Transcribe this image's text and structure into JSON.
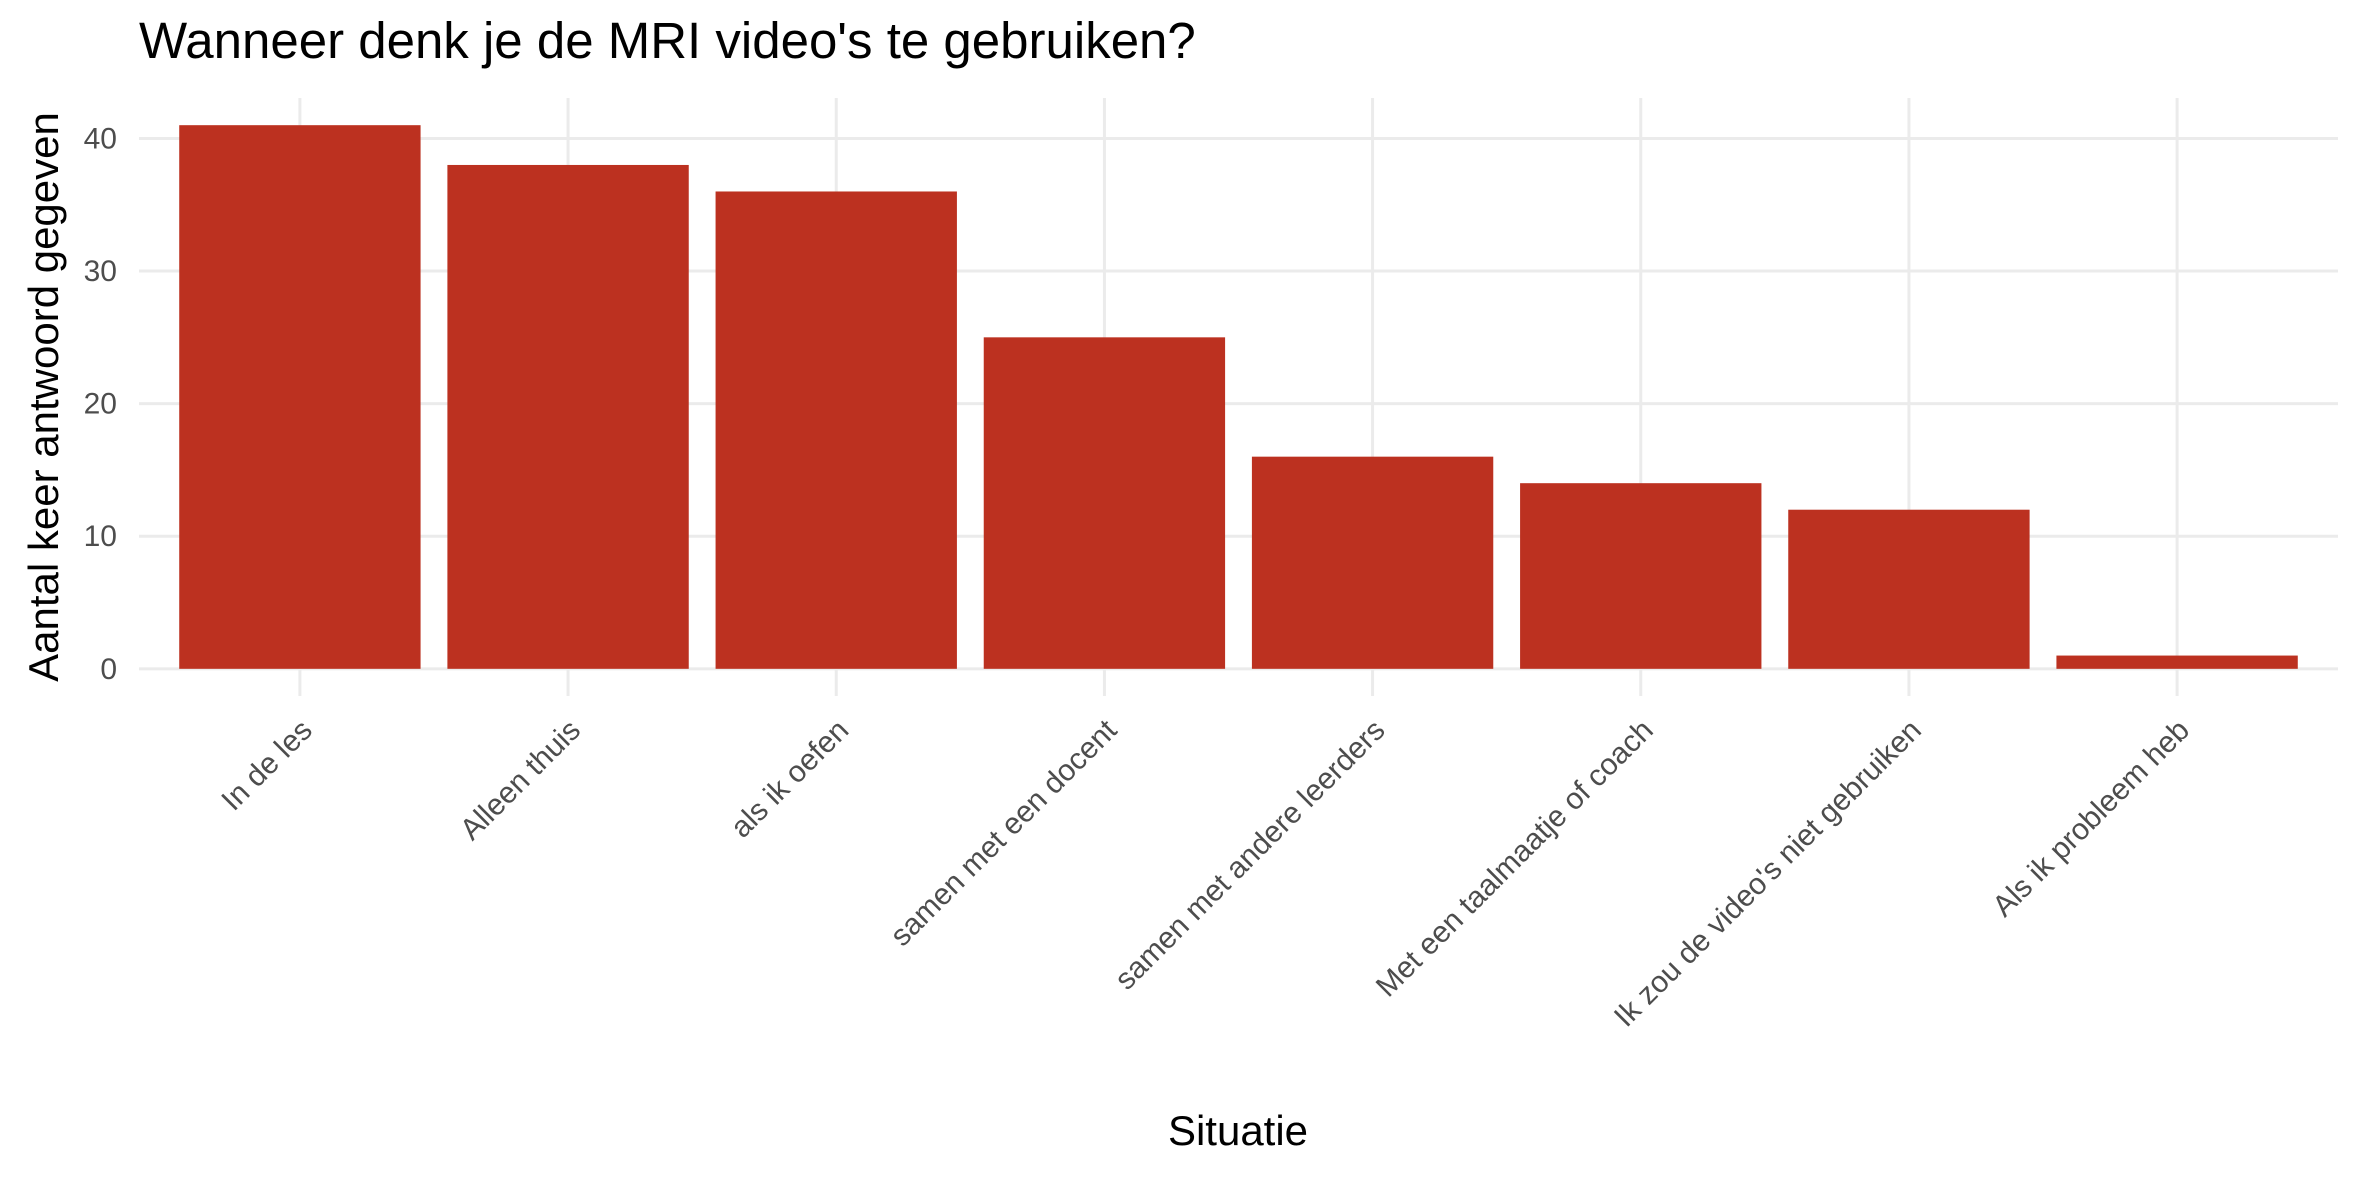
{
  "chart_data": {
    "type": "bar",
    "title": "Wanneer denk je de MRI video's te gebruiken?",
    "x_label": "Situatie",
    "y_label": "Aantal keer antwoord gegeven",
    "categories": [
      "In de les",
      "Alleen thuis",
      "als ik oefen",
      "samen met een docent",
      "samen met andere leerders",
      "Met een taalmaatje of coach",
      "Ik zou de video's niet gebruiken",
      "Als ik probleem heb"
    ],
    "values": [
      41,
      38,
      36,
      25,
      16,
      14,
      12,
      1
    ],
    "color": "#bc3120",
    "ylim": [
      -2.05,
      43.05
    ],
    "yticks": [
      0,
      10,
      20,
      30,
      40
    ],
    "grid": true
  }
}
